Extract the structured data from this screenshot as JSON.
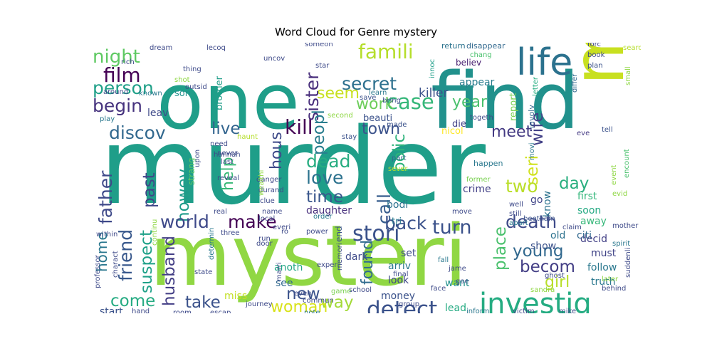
{
  "chart_data": {
    "type": "wordcloud",
    "title": "Word Cloud for Genre mystery",
    "words": [
      {
        "text": "murder",
        "size": 4.0,
        "color": "#1f9e89"
      },
      {
        "text": "mysteri",
        "size": 3.5,
        "color": "#90d743"
      },
      {
        "text": "one",
        "size": 2.5,
        "color": "#1f9e89"
      },
      {
        "text": "find",
        "size": 2.3,
        "color": "#21918c"
      },
      {
        "text": "man",
        "size": 2.0,
        "color": "#c8e020"
      },
      {
        "text": "life",
        "size": 1.0,
        "color": "#2c728e"
      },
      {
        "text": "investig",
        "size": 0.8,
        "color": "#25ac82"
      },
      {
        "text": "stori",
        "size": 0.6,
        "color": "#3b528b"
      },
      {
        "text": "detect",
        "size": 0.62,
        "color": "#3b528b"
      },
      {
        "text": "famili",
        "size": 0.55,
        "color": "#b5de2b"
      },
      {
        "text": "film",
        "size": 0.55,
        "color": "#440154"
      },
      {
        "text": "night",
        "size": 0.52,
        "color": "#5ec962"
      },
      {
        "text": "person",
        "size": 0.52,
        "color": "#1fa088"
      },
      {
        "text": "begin",
        "size": 0.5,
        "color": "#46337e"
      },
      {
        "text": "secret",
        "size": 0.5,
        "color": "#2d708e"
      },
      {
        "text": "case",
        "size": 0.55,
        "color": "#35b779"
      },
      {
        "text": "seem",
        "size": 0.45,
        "color": "#c8e020"
      },
      {
        "text": "work",
        "size": 0.45,
        "color": "#6ccd5a"
      },
      {
        "text": "year",
        "size": 0.45,
        "color": "#4ac16d"
      },
      {
        "text": "discov",
        "size": 0.5,
        "color": "#31688e"
      },
      {
        "text": "kill",
        "size": 0.55,
        "color": "#440154"
      },
      {
        "text": "live",
        "size": 0.45,
        "color": "#32648e"
      },
      {
        "text": "town",
        "size": 0.45,
        "color": "#3b528b"
      },
      {
        "text": "sister",
        "size": 0.5,
        "color": "#472d7b"
      },
      {
        "text": "peopl",
        "size": 0.45,
        "color": "#287d8e"
      },
      {
        "text": "hous",
        "size": 0.45,
        "color": "#3e4a89"
      },
      {
        "text": "help",
        "size": 0.45,
        "color": "#38b977"
      },
      {
        "text": "meet",
        "size": 0.45,
        "color": "#443a83"
      },
      {
        "text": "wife",
        "size": 0.45,
        "color": "#424086"
      },
      {
        "text": "killer",
        "size": 0.35,
        "color": "#3b528b"
      },
      {
        "text": "polic",
        "size": 0.45,
        "color": "#2eb37c"
      },
      {
        "text": "dead",
        "size": 0.5,
        "color": "#27ad81"
      },
      {
        "text": "love",
        "size": 0.5,
        "color": "#2c728e"
      },
      {
        "text": "time",
        "size": 0.45,
        "color": "#39568c"
      },
      {
        "text": "father",
        "size": 0.5,
        "color": "#3e4989"
      },
      {
        "text": "past",
        "size": 0.45,
        "color": "#404688"
      },
      {
        "text": "howev",
        "size": 0.45,
        "color": "#1e9b8a"
      },
      {
        "text": "seri",
        "size": 0.45,
        "color": "#d0e11c"
      },
      {
        "text": "two",
        "size": 0.5,
        "color": "#bade28"
      },
      {
        "text": "day",
        "size": 0.45,
        "color": "#29af7f"
      },
      {
        "text": "call",
        "size": 0.5,
        "color": "#365c8d"
      },
      {
        "text": "world",
        "size": 0.5,
        "color": "#3e4989"
      },
      {
        "text": "make",
        "size": 0.5,
        "color": "#440154"
      },
      {
        "text": "back",
        "size": 0.5,
        "color": "#3b528b"
      },
      {
        "text": "turn",
        "size": 0.55,
        "color": "#3b528b"
      },
      {
        "text": "death",
        "size": 0.5,
        "color": "#3e4a89"
      },
      {
        "text": "friend",
        "size": 0.5,
        "color": "#38588c"
      },
      {
        "text": "suspect",
        "size": 0.45,
        "color": "#1fa188"
      },
      {
        "text": "come",
        "size": 0.45,
        "color": "#25ab82"
      },
      {
        "text": "husband",
        "size": 0.45,
        "color": "#433e85"
      },
      {
        "text": "take",
        "size": 0.45,
        "color": "#3b528b"
      },
      {
        "text": "home",
        "size": 0.4,
        "color": "#2a778e"
      },
      {
        "text": "found",
        "size": 0.45,
        "color": "#2f6b8e"
      },
      {
        "text": "place",
        "size": 0.45,
        "color": "#4ac16d"
      },
      {
        "text": "becom",
        "size": 0.45,
        "color": "#433e85"
      },
      {
        "text": "young",
        "size": 0.45,
        "color": "#31688e"
      },
      {
        "text": "girl",
        "size": 0.45,
        "color": "#b8de29"
      },
      {
        "text": "new",
        "size": 0.45,
        "color": "#3b528b"
      },
      {
        "text": "way",
        "size": 0.45,
        "color": "#a2da37"
      },
      {
        "text": "woman",
        "size": 0.45,
        "color": "#d8e219"
      },
      {
        "text": "away",
        "size": 0.3,
        "color": "#35b779"
      },
      {
        "text": "decid",
        "size": 0.3,
        "color": "#424086"
      },
      {
        "text": "must",
        "size": 0.3,
        "color": "#414487"
      },
      {
        "text": "follow",
        "size": 0.3,
        "color": "#2a788e"
      },
      {
        "text": "truth",
        "size": 0.3,
        "color": "#2a788e"
      },
      {
        "text": "leav",
        "size": 0.3,
        "color": "#3e4989"
      },
      {
        "text": "son",
        "size": 0.3,
        "color": "#21918c"
      },
      {
        "text": "brother",
        "size": 0.25,
        "color": "#1f9e89"
      },
      {
        "text": "appear",
        "size": 0.3,
        "color": "#287c8e"
      },
      {
        "text": "believ",
        "size": 0.25,
        "color": "#482071"
      },
      {
        "text": "report",
        "size": 0.25,
        "color": "#7ad151"
      },
      {
        "text": "die",
        "size": 0.3,
        "color": "#424086"
      },
      {
        "text": "beauti",
        "size": 0.25,
        "color": "#3b528b"
      },
      {
        "text": "nicol",
        "size": 0.25,
        "color": "#fde725"
      },
      {
        "text": "daughter",
        "size": 0.3,
        "color": "#472f7d"
      },
      {
        "text": "bodi",
        "size": 0.3,
        "color": "#2c718e"
      },
      {
        "text": "tri",
        "size": 0.3,
        "color": "#2a788e"
      },
      {
        "text": "crime",
        "size": 0.3,
        "color": "#424086"
      },
      {
        "text": "know",
        "size": 0.3,
        "color": "#2c738e"
      },
      {
        "text": "old",
        "size": 0.3,
        "color": "#2c728e"
      },
      {
        "text": "citi",
        "size": 0.3,
        "color": "#31688e"
      },
      {
        "text": "show",
        "size": 0.3,
        "color": "#3b528b"
      },
      {
        "text": "go",
        "size": 0.3,
        "color": "#404588"
      },
      {
        "text": "first",
        "size": 0.3,
        "color": "#32b67a"
      },
      {
        "text": "soon",
        "size": 0.3,
        "color": "#24aa83"
      },
      {
        "text": "set",
        "size": 0.3,
        "color": "#3e4a89"
      },
      {
        "text": "arriv",
        "size": 0.3,
        "color": "#2a788e"
      },
      {
        "text": "look",
        "size": 0.3,
        "color": "#3f4788"
      },
      {
        "text": "money",
        "size": 0.3,
        "color": "#3b528b"
      },
      {
        "text": "anoth",
        "size": 0.3,
        "color": "#22a785"
      },
      {
        "text": "see",
        "size": 0.3,
        "color": "#31688e"
      },
      {
        "text": "miss",
        "size": 0.3,
        "color": "#c2df23"
      },
      {
        "text": "dark",
        "size": 0.3,
        "color": "#3e4a89"
      },
      {
        "text": "lead",
        "size": 0.25,
        "color": "#25ab82"
      },
      {
        "text": "start",
        "size": 0.3,
        "color": "#3b528b"
      },
      {
        "text": "end",
        "size": 0.25,
        "color": "#3b528b"
      },
      {
        "text": "want",
        "size": 0.25,
        "color": "#21918c"
      },
      {
        "text": "strang",
        "size": 0.25,
        "color": "#5ec962"
      },
      {
        "text": "involv",
        "size": 0.2,
        "color": "#31688e"
      },
      {
        "text": "happen",
        "size": 0.2,
        "color": "#2a788e"
      },
      {
        "text": "movi",
        "size": 0.18,
        "color": "#2a788e"
      },
      {
        "text": "eve",
        "size": 0.18,
        "color": "#443983"
      },
      {
        "text": "tell",
        "size": 0.18,
        "color": "#3b528b"
      },
      {
        "text": "event",
        "size": 0.18,
        "color": "#8fd744"
      },
      {
        "text": "encount",
        "size": 0.18,
        "color": "#4ac16d"
      },
      {
        "text": "evid",
        "size": 0.18,
        "color": "#8fd744"
      },
      {
        "text": "letter",
        "size": 0.18,
        "color": "#26ad81"
      },
      {
        "text": "differ",
        "size": 0.18,
        "color": "#31688e"
      },
      {
        "text": "book",
        "size": 0.18,
        "color": "#3e4a89"
      },
      {
        "text": "forc",
        "size": 0.18,
        "color": "#404688"
      },
      {
        "text": "search",
        "size": 0.18,
        "color": "#b5de2b"
      },
      {
        "text": "plan",
        "size": 0.18,
        "color": "#3b528b"
      },
      {
        "text": "small",
        "size": 0.18,
        "color": "#8fd744"
      },
      {
        "text": "disappear",
        "size": 0.2,
        "color": "#31688e"
      },
      {
        "text": "return",
        "size": 0.2,
        "color": "#2c738e"
      },
      {
        "text": "chang",
        "size": 0.18,
        "color": "#4ac16d"
      },
      {
        "text": "innoc",
        "size": 0.18,
        "color": "#1f9e89"
      },
      {
        "text": "learn",
        "size": 0.18,
        "color": "#2a788e"
      },
      {
        "text": "bring",
        "size": 0.18,
        "color": "#3b528b"
      },
      {
        "text": "togeth",
        "size": 0.18,
        "color": "#3e4a89"
      },
      {
        "text": "save",
        "size": 0.18,
        "color": "#3b528b"
      },
      {
        "text": "second",
        "size": 0.18,
        "color": "#8fd744"
      },
      {
        "text": "made",
        "size": 0.18,
        "color": "#3b528b"
      },
      {
        "text": "stay",
        "size": 0.18,
        "color": "#3b528b"
      },
      {
        "text": "part",
        "size": 0.18,
        "color": "#31688e"
      },
      {
        "text": "sever",
        "size": 0.18,
        "color": "#b5de2b"
      },
      {
        "text": "former",
        "size": 0.18,
        "color": "#7ad151"
      },
      {
        "text": "well",
        "size": 0.18,
        "color": "#3e4a89"
      },
      {
        "text": "still",
        "size": 0.18,
        "color": "#3e4a89"
      },
      {
        "text": "apart",
        "size": 0.18,
        "color": "#2a788e"
      },
      {
        "text": "beetham",
        "size": 0.18,
        "color": "#3b528b"
      },
      {
        "text": "claim",
        "size": 0.18,
        "color": "#3e4a89"
      },
      {
        "text": "mother",
        "size": 0.18,
        "color": "#3e4a89"
      },
      {
        "text": "spirit",
        "size": 0.18,
        "color": "#2a788e"
      },
      {
        "text": "later",
        "size": 0.18,
        "color": "#8fd744"
      },
      {
        "text": "behind",
        "size": 0.18,
        "color": "#3e4a89"
      },
      {
        "text": "suddenli",
        "size": 0.18,
        "color": "#3e4a89"
      },
      {
        "text": "ghost",
        "size": 0.18,
        "color": "#3e4a89"
      },
      {
        "text": "sandra",
        "size": 0.18,
        "color": "#8fd744"
      },
      {
        "text": "mike",
        "size": 0.18,
        "color": "#3e4a89"
      },
      {
        "text": "goe",
        "size": 0.18,
        "color": "#3e4a89"
      },
      {
        "text": "jame",
        "size": 0.18,
        "color": "#3e4a89"
      },
      {
        "text": "fall",
        "size": 0.18,
        "color": "#2a788e"
      },
      {
        "text": "face",
        "size": 0.18,
        "color": "#3e4a89"
      },
      {
        "text": "group",
        "size": 0.18,
        "color": "#3e4a89"
      },
      {
        "text": "inform",
        "size": 0.18,
        "color": "#2a788e"
      },
      {
        "text": "victim",
        "size": 0.18,
        "color": "#3e4a89"
      },
      {
        "text": "final",
        "size": 0.18,
        "color": "#3e4a89"
      },
      {
        "text": "school",
        "size": 0.18,
        "color": "#3e4a89"
      },
      {
        "text": "game",
        "size": 0.18,
        "color": "#7ad151"
      },
      {
        "text": "memori",
        "size": 0.18,
        "color": "#3e4a89"
      },
      {
        "text": "experi",
        "size": 0.18,
        "color": "#3e4a89"
      },
      {
        "text": "move",
        "size": 0.18,
        "color": "#3e4a89"
      },
      {
        "text": "power",
        "size": 0.18,
        "color": "#3e4a89"
      },
      {
        "text": "order",
        "size": 0.18,
        "color": "#2a788e"
      },
      {
        "text": "ro",
        "size": 0.18,
        "color": "#3e4a89"
      },
      {
        "text": "everi",
        "size": 0.18,
        "color": "#3e4a89"
      },
      {
        "text": "even",
        "size": 0.18,
        "color": "#3e4a89"
      },
      {
        "text": "commun",
        "size": 0.18,
        "color": "#3e4a89"
      },
      {
        "text": "note",
        "size": 0.18,
        "color": "#2a788e"
      },
      {
        "text": "local",
        "size": 0.18,
        "color": "#3e4a89"
      },
      {
        "text": "name",
        "size": 0.18,
        "color": "#3e4a89"
      },
      {
        "text": "real",
        "size": 0.18,
        "color": "#3e4a89"
      },
      {
        "text": "clue",
        "size": 0.18,
        "color": "#3e4a89"
      },
      {
        "text": "danger",
        "size": 0.18,
        "color": "#3e4a89"
      },
      {
        "text": "durand",
        "size": 0.18,
        "color": "#3e4a89"
      },
      {
        "text": "wealthi",
        "size": 0.18,
        "color": "#8fd744"
      },
      {
        "text": "reveal",
        "size": 0.18,
        "color": "#3e4a89"
      },
      {
        "text": "never",
        "size": 0.18,
        "color": "#3e4a89"
      },
      {
        "text": "upon",
        "size": 0.18,
        "color": "#3e4a89"
      },
      {
        "text": "need",
        "size": 0.18,
        "color": "#3e4a89"
      },
      {
        "text": "haunt",
        "size": 0.18,
        "color": "#b5de2b"
      },
      {
        "text": "hannah",
        "size": 0.18,
        "color": "#3e4a89"
      },
      {
        "text": "last",
        "size": 0.18,
        "color": "#3e4a89"
      },
      {
        "text": "uncov",
        "size": 0.18,
        "color": "#3e4a89"
      },
      {
        "text": "star",
        "size": 0.18,
        "color": "#3e4a89"
      },
      {
        "text": "someon",
        "size": 0.18,
        "color": "#3e4a89"
      },
      {
        "text": "lecoq",
        "size": 0.18,
        "color": "#3e4a89"
      },
      {
        "text": "dream",
        "size": 0.18,
        "color": "#3e4a89"
      },
      {
        "text": "thing",
        "size": 0.18,
        "color": "#3e4a89"
      },
      {
        "text": "shot",
        "size": 0.18,
        "color": "#8fd744"
      },
      {
        "text": "outsid",
        "size": 0.18,
        "color": "#3e4a89"
      },
      {
        "text": "rich",
        "size": 0.18,
        "color": "#3e4a89"
      },
      {
        "text": "around",
        "size": 0.18,
        "color": "#3e4a89"
      },
      {
        "text": "known",
        "size": 0.18,
        "color": "#2a788e"
      },
      {
        "text": "play",
        "size": 0.18,
        "color": "#2a788e"
      },
      {
        "text": "within",
        "size": 0.18,
        "color": "#3e4a89"
      },
      {
        "text": "continu",
        "size": 0.18,
        "color": "#8fd744"
      },
      {
        "text": "three",
        "size": 0.18,
        "color": "#3e4a89"
      },
      {
        "text": "run",
        "size": 0.18,
        "color": "#3e4a89"
      },
      {
        "text": "door",
        "size": 0.18,
        "color": "#3e4a89"
      },
      {
        "text": "state",
        "size": 0.18,
        "color": "#3e4a89"
      },
      {
        "text": "journey",
        "size": 0.18,
        "color": "#3e4a89"
      },
      {
        "text": "marri",
        "size": 0.18,
        "color": "#3e4a89"
      },
      {
        "text": "determin",
        "size": 0.18,
        "color": "#2a788e"
      },
      {
        "text": "charact",
        "size": 0.18,
        "color": "#3e4a89"
      },
      {
        "text": "professor",
        "size": 0.18,
        "color": "#3e4a89"
      },
      {
        "text": "escap",
        "size": 0.18,
        "color": "#3e4a89"
      },
      {
        "text": "room",
        "size": 0.18,
        "color": "#3e4a89"
      },
      {
        "text": "hand",
        "size": 0.18,
        "color": "#3e4a89"
      }
    ]
  }
}
